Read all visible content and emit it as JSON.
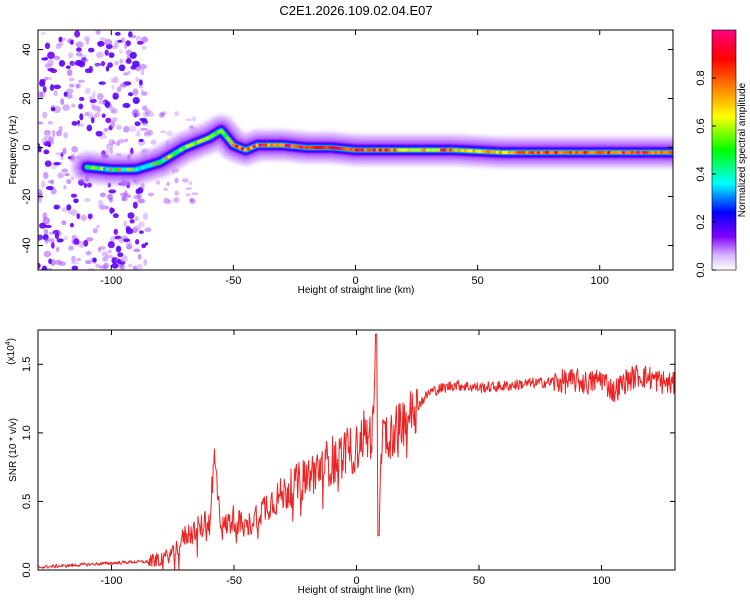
{
  "title": "C2E1.2026.109.02.04.E07",
  "chart_data": [
    {
      "type": "heatmap",
      "xlabel": "Height of straight line (km)",
      "ylabel": "Frequency (Hz)",
      "xlim": [
        -130,
        130
      ],
      "ylim": [
        -50,
        48
      ],
      "xticks": [
        -100,
        -50,
        0,
        50,
        100
      ],
      "yticks": [
        -40,
        -20,
        0,
        20,
        40
      ],
      "colorbar": {
        "label": "Normalized spectral amplitude",
        "range": [
          0,
          1
        ],
        "ticks": [
          "0.0",
          "0.2",
          "0.4",
          "0.6",
          "0.8"
        ],
        "stops": [
          "#ffffff",
          "#8000ff",
          "#0000ff",
          "#00ffff",
          "#00ff00",
          "#ffff00",
          "#ff8000",
          "#ff0000",
          "#ff0080"
        ]
      },
      "ridge": {
        "x": [
          -110,
          -100,
          -90,
          -80,
          -70,
          -60,
          -55,
          -50,
          -45,
          -40,
          -30,
          -20,
          -10,
          0,
          10,
          20,
          40,
          60,
          80,
          100,
          110,
          130
        ],
        "y": [
          -8,
          -9,
          -9,
          -6,
          0,
          4,
          7,
          1,
          -1,
          1,
          1,
          0,
          0,
          -1,
          -1,
          -1,
          -1,
          -2,
          -2,
          -2,
          -2,
          -2
        ],
        "amplitude": [
          0.45,
          0.42,
          0.4,
          0.5,
          0.55,
          0.6,
          0.55,
          0.7,
          0.75,
          0.72,
          0.75,
          0.8,
          0.85,
          0.8,
          0.8,
          0.7,
          0.65,
          0.7,
          0.8,
          0.8,
          0.8,
          0.75
        ]
      }
    },
    {
      "type": "line",
      "xlabel": "Height of straight line (km)",
      "ylabel": "SNR (10 * v/v)",
      "yscale_label": "(x10",
      "yscale_exp": "4",
      "xlim": [
        -130,
        130
      ],
      "ylim": [
        0,
        1.75
      ],
      "xticks": [
        -100,
        -50,
        0,
        50,
        100
      ],
      "yticks": [
        0.0,
        0.5,
        1.0,
        1.5
      ],
      "ytick_labels": [
        "0.0",
        "0.5",
        "1.0",
        "1.5"
      ],
      "color": "#ee2222",
      "series": [
        {
          "name": "SNR",
          "x": [
            -130,
            -120,
            -110,
            -100,
            -90,
            -85,
            -80,
            -75,
            -70,
            -65,
            -60,
            -58,
            -55,
            -50,
            -45,
            -40,
            -35,
            -30,
            -25,
            -20,
            -15,
            -10,
            -5,
            0,
            3,
            5,
            7,
            8,
            9,
            10,
            15,
            20,
            25,
            30,
            40,
            50,
            60,
            70,
            80,
            90,
            95,
            100,
            105,
            110,
            115,
            120,
            125,
            130
          ],
          "y": [
            0.02,
            0.03,
            0.04,
            0.05,
            0.06,
            0.06,
            0.08,
            0.12,
            0.25,
            0.3,
            0.35,
            0.8,
            0.3,
            0.38,
            0.3,
            0.42,
            0.5,
            0.55,
            0.62,
            0.68,
            0.75,
            0.8,
            0.85,
            0.88,
            1.0,
            0.95,
            1.05,
            1.7,
            0.25,
            0.95,
            1.0,
            1.1,
            1.2,
            1.3,
            1.35,
            1.33,
            1.34,
            1.36,
            1.37,
            1.38,
            1.36,
            1.4,
            1.3,
            1.38,
            1.42,
            1.4,
            1.37,
            1.35
          ]
        }
      ]
    }
  ]
}
